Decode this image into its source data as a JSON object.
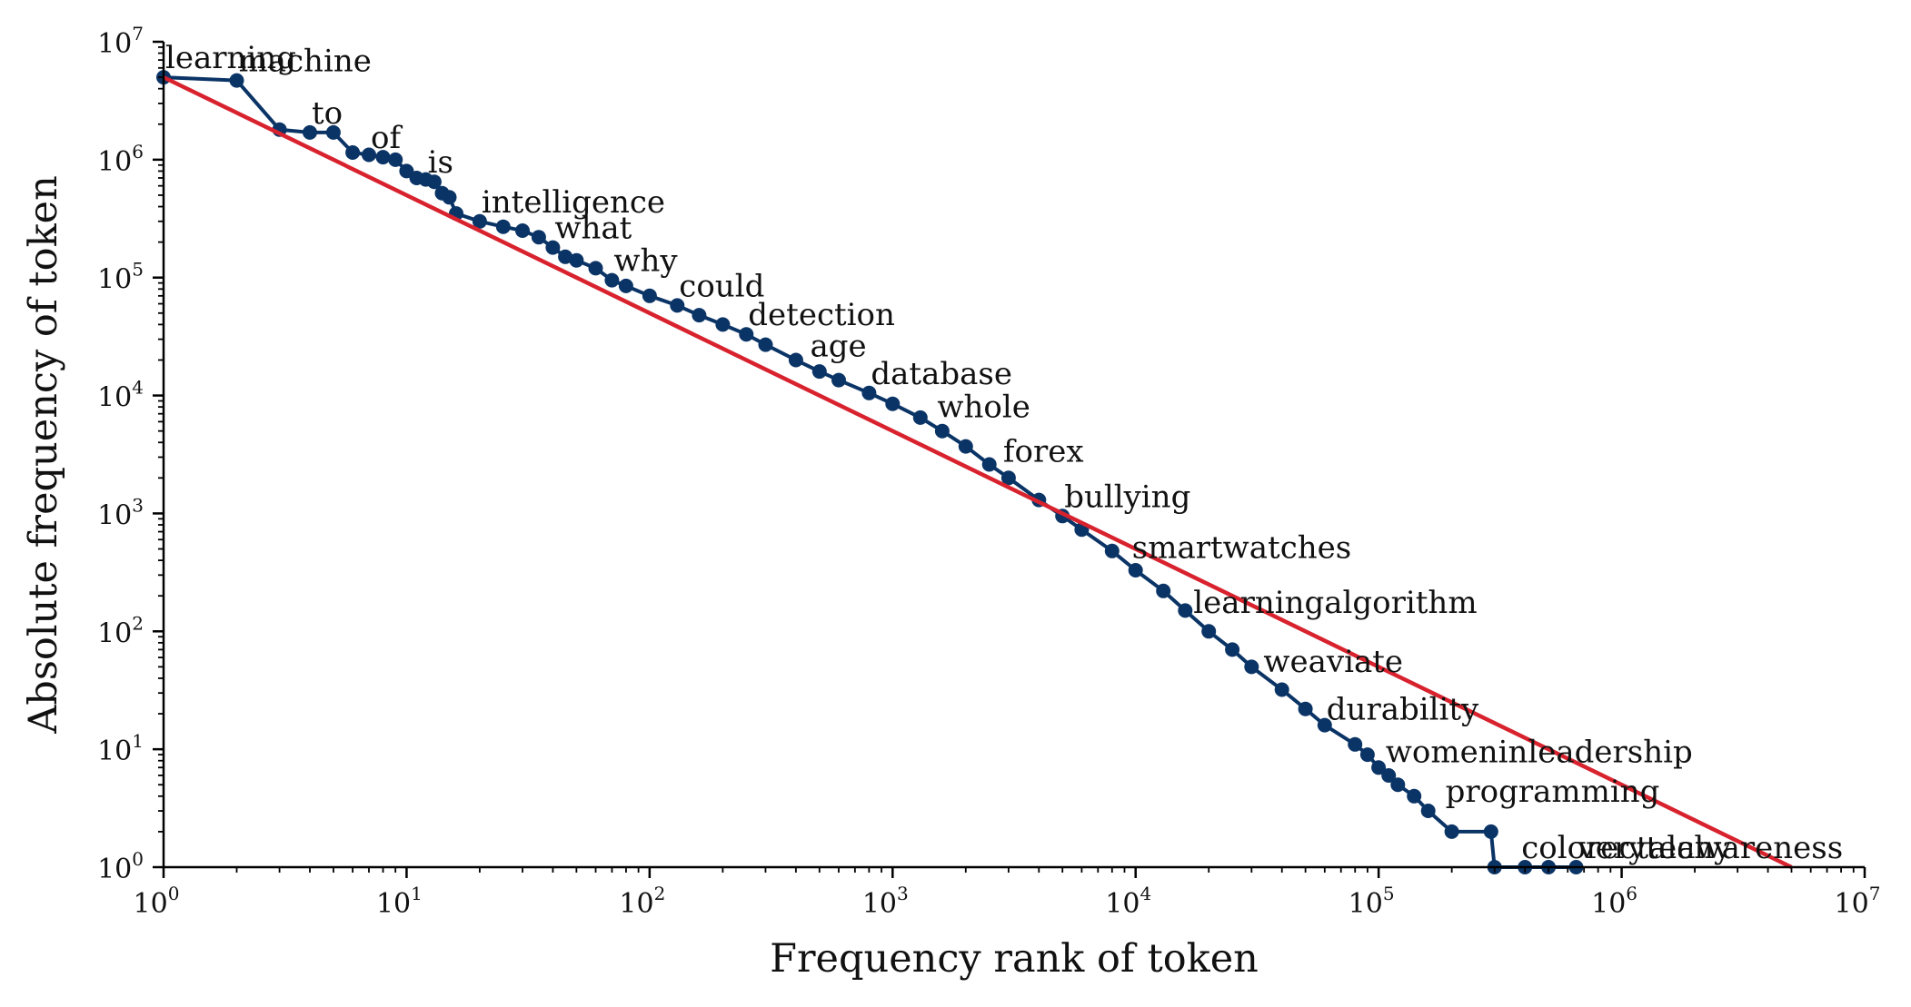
{
  "chart_data": {
    "type": "line",
    "xlabel": "Frequency rank of token",
    "ylabel": "Absolute frequency of token",
    "xscale": "log",
    "yscale": "log",
    "xlim": [
      1,
      10000000
    ],
    "ylim": [
      1,
      10000000
    ],
    "grid": false,
    "x_ticks": [
      {
        "base": "10",
        "exp": "0",
        "value": 1
      },
      {
        "base": "10",
        "exp": "1",
        "value": 10
      },
      {
        "base": "10",
        "exp": "2",
        "value": 100
      },
      {
        "base": "10",
        "exp": "3",
        "value": 1000
      },
      {
        "base": "10",
        "exp": "4",
        "value": 10000
      },
      {
        "base": "10",
        "exp": "5",
        "value": 100000
      },
      {
        "base": "10",
        "exp": "6",
        "value": 1000000
      },
      {
        "base": "10",
        "exp": "7",
        "value": 10000000
      }
    ],
    "y_ticks": [
      {
        "base": "10",
        "exp": "0",
        "value": 1
      },
      {
        "base": "10",
        "exp": "1",
        "value": 10
      },
      {
        "base": "10",
        "exp": "2",
        "value": 100
      },
      {
        "base": "10",
        "exp": "3",
        "value": 1000
      },
      {
        "base": "10",
        "exp": "4",
        "value": 10000
      },
      {
        "base": "10",
        "exp": "5",
        "value": 100000
      },
      {
        "base": "10",
        "exp": "6",
        "value": 1000000
      },
      {
        "base": "10",
        "exp": "7",
        "value": 10000000
      }
    ],
    "series": [
      {
        "color": "#0b3466",
        "marker": "circle",
        "x": [
          1,
          2,
          3,
          4,
          5,
          6,
          7,
          8,
          9,
          10,
          11,
          12,
          13,
          14,
          15,
          16,
          20,
          25,
          30,
          35,
          40,
          45,
          50,
          60,
          70,
          80,
          100,
          130,
          160,
          200,
          250,
          300,
          400,
          500,
          600,
          800,
          1000,
          1300,
          1600,
          2000,
          2500,
          3000,
          4000,
          5000,
          6000,
          8000,
          10000,
          13000,
          16000,
          20000,
          25000,
          30000,
          40000,
          50000,
          60000,
          80000,
          90000,
          100000,
          110000,
          120000,
          140000,
          160000,
          200000,
          290000,
          300000,
          400000,
          500000,
          650000
        ],
        "y": [
          5000000,
          4700000,
          1800000,
          1700000,
          1700000,
          1150000,
          1100000,
          1050000,
          1000000,
          800000,
          700000,
          680000,
          650000,
          520000,
          480000,
          350000,
          300000,
          270000,
          250000,
          220000,
          180000,
          150000,
          140000,
          120000,
          95000,
          85000,
          70000,
          58000,
          48000,
          40000,
          33000,
          27000,
          20000,
          16000,
          13500,
          10500,
          8500,
          6500,
          5000,
          3700,
          2600,
          2000,
          1300,
          950,
          730,
          480,
          330,
          220,
          150,
          100,
          70,
          50,
          32,
          22,
          16,
          11,
          9,
          7,
          6,
          5,
          4,
          3,
          2,
          2,
          1,
          1,
          1,
          1
        ]
      },
      {
        "color": "#d8222e",
        "marker": "none",
        "x": [
          1,
          5000000
        ],
        "y": [
          5000000,
          1
        ]
      }
    ],
    "annotations": [
      {
        "text": "learning",
        "x": 1,
        "y": 5000000
      },
      {
        "text": "machine",
        "x": 2,
        "y": 4700000
      },
      {
        "text": "to",
        "x": 4,
        "y": 1700000
      },
      {
        "text": "of",
        "x": 7,
        "y": 1050000
      },
      {
        "text": "is",
        "x": 12,
        "y": 650000
      },
      {
        "text": "intelligence",
        "x": 20,
        "y": 300000
      },
      {
        "text": "what",
        "x": 40,
        "y": 180000
      },
      {
        "text": "why",
        "x": 70,
        "y": 95000
      },
      {
        "text": "could",
        "x": 130,
        "y": 58000
      },
      {
        "text": "detection",
        "x": 250,
        "y": 33000
      },
      {
        "text": "age",
        "x": 450,
        "y": 18000
      },
      {
        "text": "database",
        "x": 800,
        "y": 10500
      },
      {
        "text": "whole",
        "x": 1500,
        "y": 5500
      },
      {
        "text": "forex",
        "x": 2800,
        "y": 2300
      },
      {
        "text": "bullying",
        "x": 5000,
        "y": 950
      },
      {
        "text": "smartwatches",
        "x": 9500,
        "y": 350
      },
      {
        "text": "learningalgorithm",
        "x": 17000,
        "y": 120
      },
      {
        "text": "weaviate",
        "x": 33000,
        "y": 38
      },
      {
        "text": "durability",
        "x": 60000,
        "y": 15
      },
      {
        "text": "womeninleadership",
        "x": 105000,
        "y": 6.5
      },
      {
        "text": "programming",
        "x": 185000,
        "y": 3
      },
      {
        "text": "verytechy",
        "x": 650000,
        "y": 1
      },
      {
        "text": "colorectalawareness",
        "x": 380000,
        "y": 1
      }
    ]
  }
}
